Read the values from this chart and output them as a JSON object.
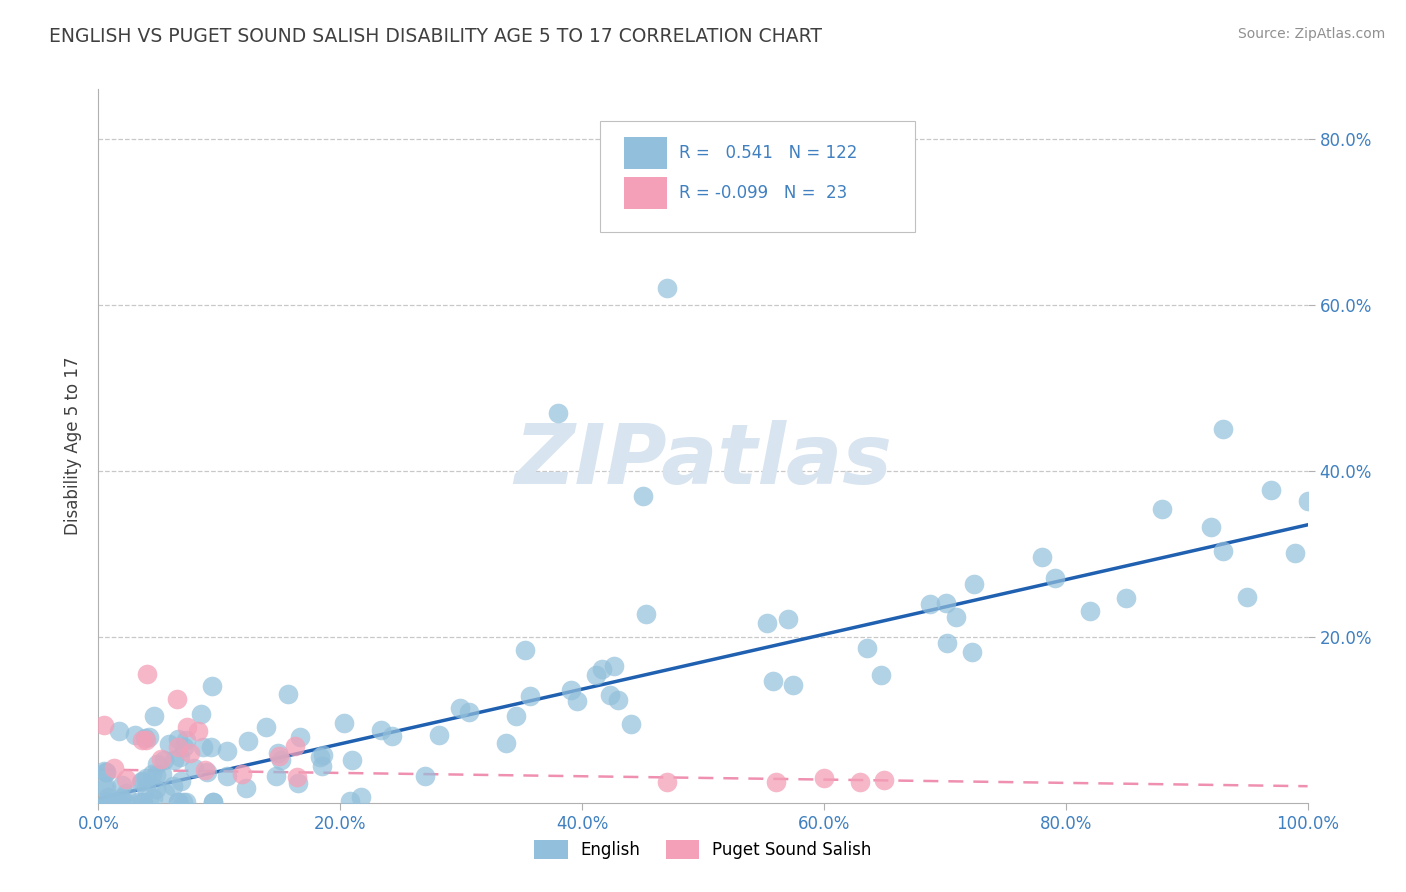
{
  "title": "ENGLISH VS PUGET SOUND SALISH DISABILITY AGE 5 TO 17 CORRELATION CHART",
  "source": "Source: ZipAtlas.com",
  "ylabel": "Disability Age 5 to 17",
  "xlim": [
    0,
    1.0
  ],
  "ylim": [
    0,
    0.86
  ],
  "xtick_labels": [
    "0.0%",
    "20.0%",
    "40.0%",
    "60.0%",
    "80.0%",
    "100.0%"
  ],
  "xtick_vals": [
    0.0,
    0.2,
    0.4,
    0.6,
    0.8,
    1.0
  ],
  "ytick_labels": [
    "20.0%",
    "40.0%",
    "60.0%",
    "80.0%"
  ],
  "ytick_vals": [
    0.2,
    0.4,
    0.6,
    0.8
  ],
  "english_R": 0.541,
  "english_N": 122,
  "salish_R": -0.099,
  "salish_N": 23,
  "english_color": "#92BFDB",
  "salish_color": "#F4A0B8",
  "english_line_color": "#2060B0",
  "salish_line_color": "#F090B0",
  "title_color": "#404040",
  "source_color": "#909090",
  "axis_color": "#B0B0B0",
  "grid_color": "#C8C8C8",
  "tick_label_color": "#4080C0",
  "watermark_color": "#D8E4F0",
  "watermark_text": "ZIPatlas",
  "eng_line_start_y": 0.005,
  "eng_line_end_y": 0.335,
  "sal_line_start_y": 0.04,
  "sal_line_end_y": 0.02
}
